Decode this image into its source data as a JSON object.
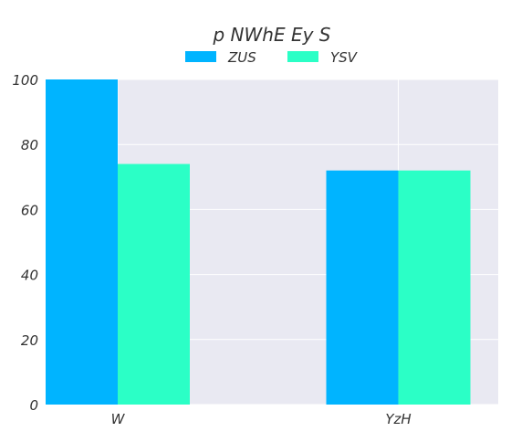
{
  "chart_data": {
    "type": "bar",
    "title": "p NWhE Ey S",
    "xlabel": "",
    "ylabel": "",
    "categories": [
      "W",
      "YzH"
    ],
    "series": [
      {
        "name": "ZUS",
        "values": [
          100,
          72
        ],
        "color": "#00b4ff"
      },
      {
        "name": "YSV",
        "values": [
          74,
          72
        ],
        "color": "#2bffc6"
      }
    ],
    "ylim": [
      0,
      100
    ],
    "yticks": [
      0,
      20,
      40,
      60,
      80,
      100
    ],
    "grid": true,
    "legend_position": "top-center",
    "background_color": "#e9e9f2"
  }
}
